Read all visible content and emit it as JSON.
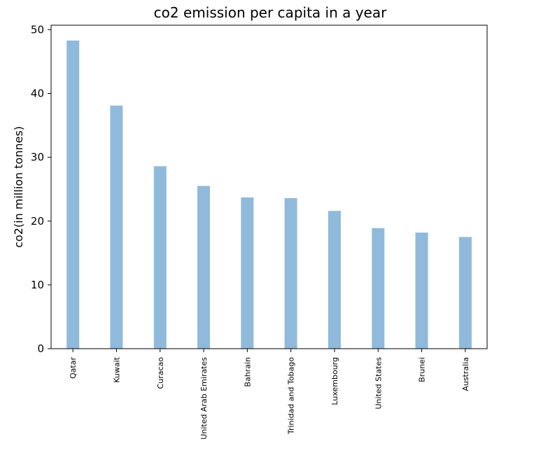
{
  "chart_data": {
    "type": "bar",
    "title": "co2 emission per capita in a year",
    "xlabel": "",
    "ylabel": "co2(in million tonnes)",
    "categories": [
      "Qatar",
      "Kuwait",
      "Curacao",
      "United Arab Emirates",
      "Bahrain",
      "Trinidad and Tobago",
      "Luxembourg",
      "United States",
      "Brunei",
      "Australia"
    ],
    "values": [
      48.3,
      38.1,
      28.6,
      25.5,
      23.7,
      23.6,
      21.6,
      18.9,
      18.2,
      17.5
    ],
    "ylim": [
      0,
      50.7
    ],
    "yticks": [
      0,
      10,
      20,
      30,
      40,
      50
    ],
    "grid": false,
    "legend": "none",
    "bar_color": "#8fbadb"
  }
}
